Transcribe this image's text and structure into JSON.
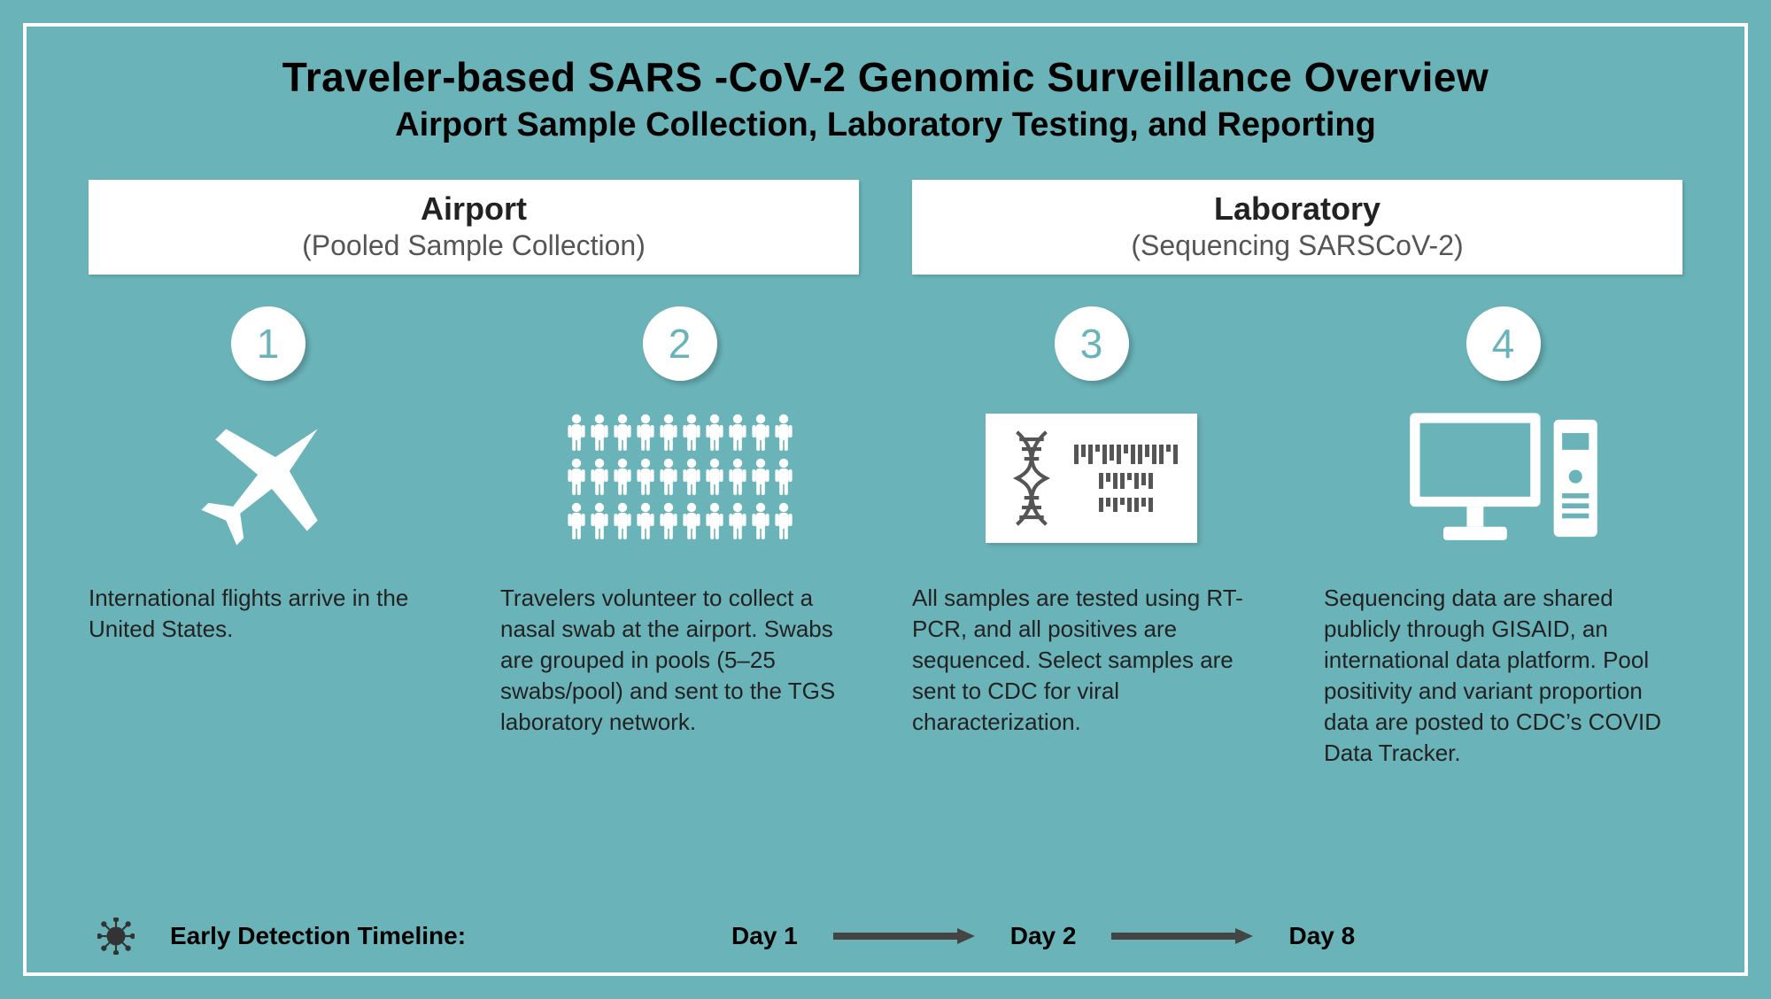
{
  "colors": {
    "background": "#6ab4b9",
    "frame_border": "#ffffff",
    "panel_bg": "#ffffff",
    "text_primary": "#000000",
    "text_secondary": "#555555",
    "icon_white": "#ffffff",
    "icon_dark": "#555555",
    "badge_text": "#6ab4b9"
  },
  "typography": {
    "title_fontsize": 46,
    "subtitle_fontsize": 38,
    "section_title_fontsize": 36,
    "section_subtitle_fontsize": 32,
    "body_fontsize": 26,
    "timeline_fontsize": 28,
    "badge_fontsize": 46
  },
  "title": "Traveler-based SARS -CoV-2 Genomic Surveillance Overview",
  "subtitle": "Airport Sample Collection, Laboratory Testing, and Reporting",
  "sections": [
    {
      "title": "Airport",
      "subtitle": "(Pooled Sample Collection)"
    },
    {
      "title": "Laboratory",
      "subtitle": "(Sequencing SARSCoV-2)"
    }
  ],
  "steps": [
    {
      "num": "1",
      "icon": "airplane",
      "desc": "International flights arrive in the United States."
    },
    {
      "num": "2",
      "icon": "people",
      "desc": "Travelers volunteer to collect a nasal swab at the airport. Swabs are grouped in pools (5–25 swabs/pool) and sent to the TGS laboratory network."
    },
    {
      "num": "3",
      "icon": "sequencing",
      "desc": "All samples are tested using RT-PCR, and all positives are sequenced. Select samples are sent to CDC for viral characterization."
    },
    {
      "num": "4",
      "icon": "computer",
      "desc": "Sequencing data are shared publicly through GISAID, an international data platform. Pool positivity and variant proportion data are posted to CDC’s COVID Data Tracker."
    }
  ],
  "timeline": {
    "label": "Early Detection Timeline:",
    "items": [
      "Day 1",
      "Day 2",
      "Day 8"
    ]
  }
}
